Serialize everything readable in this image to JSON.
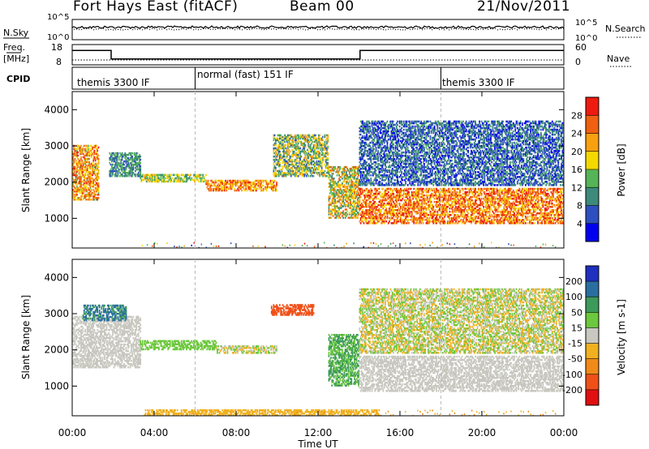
{
  "header": {
    "station": "Fort Hays East (fitACF)",
    "beam": "Beam 00",
    "date": "21/Nov/2011"
  },
  "strips": {
    "noise": {
      "left_label": "N.Sky",
      "right_label": "N.Search",
      "ticks_left": [
        "10^5",
        "10^0"
      ],
      "ticks_right": [
        "10^5",
        "10^0"
      ]
    },
    "freq": {
      "left_label": "Freq.",
      "left_unit": "[MHz]",
      "ticks_left": [
        "18",
        "8"
      ],
      "ticks_right": [
        "60",
        "0"
      ],
      "right_label": "Nave",
      "series": [
        {
          "time_h": [
            0,
            1.9,
            1.9,
            14.05,
            14.05,
            24
          ],
          "freq_mhz": [
            16,
            16,
            11,
            11,
            16,
            16
          ]
        }
      ]
    },
    "cpid": {
      "label": "CPID",
      "segments": [
        {
          "label": "themis 3300 IF",
          "start_h": 0,
          "end_h": 6
        },
        {
          "label": "normal (fast) 151 IF",
          "start_h": 6,
          "end_h": 18
        },
        {
          "label": "themis 3300 IF",
          "start_h": 18,
          "end_h": 24
        }
      ]
    }
  },
  "axes": {
    "xlabel": "Time UT",
    "xticks": [
      "00:00",
      "04:00",
      "08:00",
      "12:00",
      "16:00",
      "20:00",
      "00:00"
    ],
    "ylabel": "Slant Range [km]",
    "yticks": [
      "1000",
      "2000",
      "3000",
      "4000"
    ],
    "xlim_h": [
      0,
      24
    ],
    "ylim_km": [
      180,
      4500
    ]
  },
  "power_colorbar": {
    "label": "Power [dB]",
    "ticks": [
      "4",
      "8",
      "12",
      "16",
      "20",
      "24",
      "28"
    ],
    "colors": [
      "#0000ee",
      "#2e4fbf",
      "#3e8a7a",
      "#55b457",
      "#f4d800",
      "#f7a010",
      "#f06010",
      "#ee1a10"
    ]
  },
  "velocity_colorbar": {
    "label": "Velocity [m s-1]",
    "ticks": [
      "200",
      "100",
      "50",
      "15",
      "-15",
      "-50",
      "-100",
      "-200"
    ],
    "colors": [
      "#1f2fbf",
      "#2a6ea0",
      "#3d9a5a",
      "#6cc83c",
      "#c8c8c0",
      "#f0b020",
      "#f08a18",
      "#f05018",
      "#e01010"
    ]
  },
  "chart_data": [
    {
      "type": "heatmap",
      "title": "Power",
      "xlabel": "Time UT",
      "ylabel": "Slant Range [km]",
      "x_range_h": [
        0,
        24
      ],
      "y_range_km": [
        180,
        4500
      ],
      "colorbar": {
        "label": "Power [dB]",
        "range": [
          0,
          30
        ]
      },
      "echo_regions": [
        {
          "start_h": 0.0,
          "end_h": 1.3,
          "range_km": [
            1500,
            3000
          ],
          "power_db": [
            14,
            28
          ]
        },
        {
          "start_h": 1.8,
          "end_h": 3.3,
          "range_km": [
            2150,
            2800
          ],
          "power_db": [
            6,
            14
          ]
        },
        {
          "start_h": 3.3,
          "end_h": 6.5,
          "range_km": [
            2000,
            2200
          ],
          "power_db": [
            10,
            20
          ]
        },
        {
          "start_h": 6.5,
          "end_h": 10.0,
          "range_km": [
            1750,
            2050
          ],
          "power_db": [
            16,
            28
          ]
        },
        {
          "start_h": 9.8,
          "end_h": 12.5,
          "range_km": [
            2150,
            3300
          ],
          "power_db": [
            6,
            22
          ]
        },
        {
          "start_h": 12.5,
          "end_h": 14.0,
          "range_km": [
            1000,
            2400
          ],
          "power_db": [
            8,
            26
          ]
        },
        {
          "start_h": 14.0,
          "end_h": 24.0,
          "range_km": [
            850,
            1800
          ],
          "power_db": [
            16,
            30
          ]
        },
        {
          "start_h": 14.0,
          "end_h": 24.0,
          "range_km": [
            1900,
            3700
          ],
          "power_db": [
            2,
            12
          ]
        }
      ]
    },
    {
      "type": "heatmap",
      "title": "Velocity",
      "xlabel": "Time UT",
      "ylabel": "Slant Range [km]",
      "x_range_h": [
        0,
        24
      ],
      "y_range_km": [
        180,
        4500
      ],
      "colorbar": {
        "label": "Velocity [m s-1]",
        "range": [
          -200,
          200
        ]
      },
      "echo_regions": [
        {
          "start_h": 0.0,
          "end_h": 3.3,
          "range_km": [
            1500,
            2900
          ],
          "velocity_ms": [
            -15,
            15
          ]
        },
        {
          "start_h": 0.5,
          "end_h": 2.6,
          "range_km": [
            2800,
            3250
          ],
          "velocity_ms": [
            50,
            200
          ]
        },
        {
          "start_h": 3.3,
          "end_h": 7.0,
          "range_km": [
            2000,
            2250
          ],
          "velocity_ms": [
            15,
            50
          ]
        },
        {
          "start_h": 7.0,
          "end_h": 10.0,
          "range_km": [
            1900,
            2100
          ],
          "velocity_ms": [
            -50,
            50
          ]
        },
        {
          "start_h": 9.7,
          "end_h": 11.8,
          "range_km": [
            2950,
            3250
          ],
          "velocity_ms": [
            -200,
            -100
          ]
        },
        {
          "start_h": 12.5,
          "end_h": 14.0,
          "range_km": [
            1000,
            2400
          ],
          "velocity_ms": [
            15,
            100
          ]
        },
        {
          "start_h": 14.0,
          "end_h": 24.0,
          "range_km": [
            850,
            1800
          ],
          "velocity_ms": [
            -15,
            15
          ]
        },
        {
          "start_h": 14.0,
          "end_h": 24.0,
          "range_km": [
            1900,
            3700
          ],
          "velocity_ms": [
            -50,
            50
          ]
        },
        {
          "start_h": 3.5,
          "end_h": 15.0,
          "range_km": [
            180,
            350
          ],
          "velocity_ms": [
            -50,
            -15
          ]
        }
      ]
    }
  ]
}
